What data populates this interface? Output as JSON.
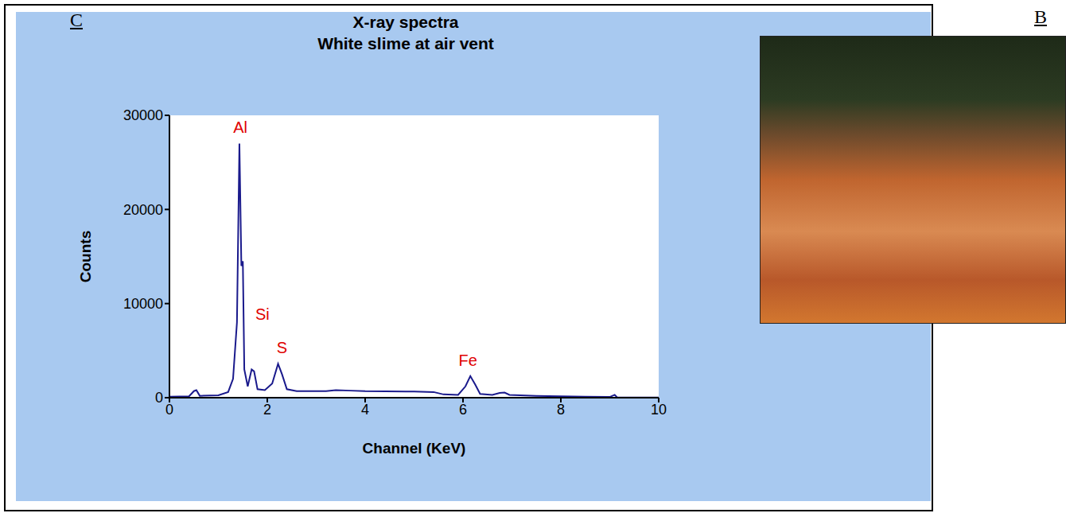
{
  "panel_labels": [
    "C",
    "B"
  ],
  "chart_data": {
    "type": "line",
    "title": "X-ray spectra",
    "subtitle": "White slime at air vent",
    "x_label": "Channel (KeV)",
    "y_label": "Counts",
    "x": [
      0,
      0.4,
      0.5,
      0.55,
      0.62,
      1.0,
      1.2,
      1.3,
      1.38,
      1.43,
      1.47,
      1.5,
      1.53,
      1.6,
      1.68,
      1.73,
      1.8,
      1.95,
      2.1,
      2.22,
      2.3,
      2.4,
      2.6,
      3.2,
      3.4,
      3.7,
      4.0,
      5.0,
      5.4,
      5.6,
      5.9,
      6.05,
      6.15,
      6.25,
      6.35,
      6.6,
      6.75,
      6.85,
      6.95,
      7.5,
      8.0,
      8.5,
      9.0,
      9.1,
      9.15,
      10
    ],
    "series": [
      {
        "name": "White slime at air vent",
        "color": "#1a1a8c",
        "values": [
          100,
          150,
          700,
          800,
          200,
          250,
          600,
          2000,
          8000,
          27000,
          14000,
          14500,
          3000,
          1200,
          3000,
          2800,
          900,
          800,
          1500,
          3600,
          2500,
          900,
          700,
          700,
          800,
          750,
          700,
          650,
          600,
          350,
          300,
          1200,
          2300,
          1400,
          400,
          300,
          500,
          550,
          300,
          200,
          150,
          100,
          80,
          300,
          50,
          30
        ]
      }
    ],
    "xlim": [
      0,
      10
    ],
    "xticks": [
      0,
      2,
      4,
      6,
      8,
      10
    ],
    "ylim": [
      0,
      30000
    ],
    "yticks": [
      0,
      10000,
      20000,
      30000
    ],
    "grid": false,
    "annotations": [
      {
        "text": "Al",
        "x": 1.45,
        "y": 28700,
        "color": "#e00000"
      },
      {
        "text": "Si",
        "x": 1.9,
        "y": 8900,
        "color": "#e00000"
      },
      {
        "text": "S",
        "x": 2.3,
        "y": 5300,
        "color": "#e00000"
      },
      {
        "text": "Fe",
        "x": 6.1,
        "y": 4000,
        "color": "#e00000"
      }
    ]
  }
}
